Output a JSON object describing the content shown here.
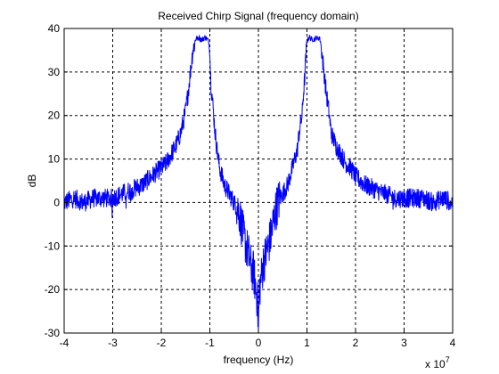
{
  "chart_data": {
    "type": "line",
    "title": "Received Chirp Signal (frequency domain)",
    "xlabel": "frequency (Hz)",
    "ylabel": "dB",
    "x_multiplier_label": "x 10",
    "x_multiplier_exponent": "7",
    "xlim": [
      -4,
      4
    ],
    "ylim": [
      -30,
      40
    ],
    "xticks": [
      -4,
      -3,
      -2,
      -1,
      0,
      1,
      2,
      3,
      4
    ],
    "yticks": [
      -30,
      -20,
      -10,
      0,
      10,
      20,
      30,
      40
    ],
    "grid": true,
    "line_color": "#0000ff",
    "series": [
      {
        "x": [
          -4.0,
          -3.8,
          -3.6,
          -3.4,
          -3.2,
          -3.0,
          -2.8,
          -2.6,
          -2.4,
          -2.2,
          -2.0,
          -1.9,
          -1.8,
          -1.7,
          -1.6,
          -1.5,
          -1.45,
          -1.4,
          -1.35,
          -1.3,
          -1.28,
          -1.25,
          -1.22,
          -1.2,
          -1.15,
          -1.1,
          -1.05,
          -1.02,
          -1.0,
          -0.98,
          -0.95,
          -0.92,
          -0.9,
          -0.85,
          -0.8,
          -0.7,
          -0.6,
          -0.5,
          -0.4,
          -0.35,
          -0.3,
          -0.25,
          -0.2,
          -0.15,
          -0.1,
          -0.05,
          -0.02,
          0.0,
          0.02,
          0.05,
          0.1,
          0.15,
          0.2,
          0.25,
          0.3,
          0.35,
          0.4,
          0.5,
          0.6,
          0.7,
          0.8,
          0.85,
          0.9,
          0.92,
          0.95,
          0.98,
          1.0,
          1.02,
          1.05,
          1.1,
          1.15,
          1.2,
          1.22,
          1.25,
          1.28,
          1.3,
          1.35,
          1.4,
          1.45,
          1.5,
          1.6,
          1.7,
          1.8,
          1.9,
          2.0,
          2.2,
          2.4,
          2.6,
          2.8,
          3.0,
          3.2,
          3.4,
          3.6,
          3.8,
          4.0
        ],
        "y": [
          0,
          1,
          0,
          1,
          1,
          1,
          2,
          3,
          4,
          6,
          8,
          9,
          11,
          13,
          16,
          21,
          25,
          30,
          35,
          37,
          38,
          37.5,
          38,
          37.5,
          37.5,
          38,
          37.5,
          37,
          34,
          28,
          24,
          20,
          17,
          12,
          8,
          4,
          2,
          0,
          -2,
          -5,
          -8,
          -10,
          -12,
          -15,
          -16,
          -20,
          -22,
          -30,
          -20,
          -18,
          -14,
          -12,
          -10,
          -8,
          -5,
          -2,
          0,
          2,
          4,
          8,
          12,
          17,
          20,
          24,
          28,
          34,
          37,
          37.5,
          38,
          37.5,
          37.5,
          38,
          37.5,
          38,
          37,
          35,
          30,
          25,
          21,
          16,
          13,
          11,
          9,
          8,
          6,
          4,
          3,
          2,
          1,
          1,
          1,
          1,
          0,
          1,
          0
        ]
      }
    ]
  }
}
